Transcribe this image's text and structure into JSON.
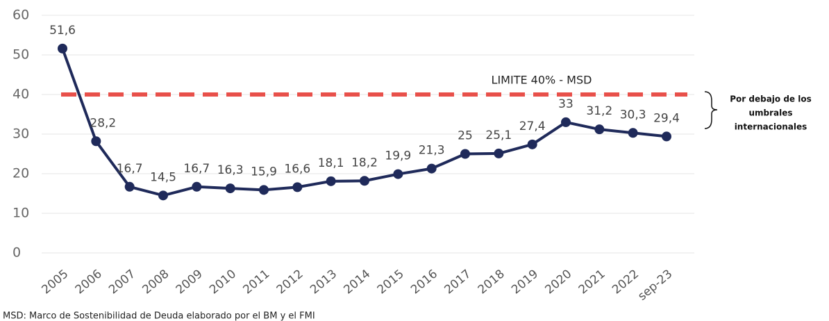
{
  "chart_data": {
    "type": "line",
    "categories": [
      "2005",
      "2006",
      "2007",
      "2008",
      "2009",
      "2010",
      "2011",
      "2012",
      "2013",
      "2014",
      "2015",
      "2016",
      "2017",
      "2018",
      "2019",
      "2020",
      "2021",
      "2022",
      "sep-23"
    ],
    "series": [
      {
        "color": "#1f2a5a",
        "values": [
          51.6,
          28.2,
          16.7,
          14.5,
          16.7,
          16.3,
          15.9,
          16.6,
          18.1,
          18.2,
          19.9,
          21.3,
          25,
          25.1,
          27.4,
          33,
          31.2,
          30.3,
          29.4
        ],
        "value_labels": [
          "51,6",
          "28,2",
          "16,7",
          "14,5",
          "16,7",
          "16,3",
          "15,9",
          "16,6",
          "18,1",
          "18,2",
          "19,9",
          "21,3",
          "25",
          "25,1",
          "27,4",
          "33",
          "31,2",
          "30,3",
          "29,4"
        ]
      }
    ],
    "ylim": [
      0,
      60
    ],
    "yticks": [
      0,
      10,
      20,
      30,
      40,
      50,
      60
    ],
    "grid": true,
    "reference_line": {
      "value": 40,
      "label": "LIMITE 40% - MSD",
      "color": "#e8504a"
    },
    "bracket_note": [
      "Por debajo de los",
      "umbrales",
      "internacionales"
    ],
    "footnote": "MSD: Marco de Sostenibilidad de Deuda elaborado por el BM y el FMI"
  }
}
